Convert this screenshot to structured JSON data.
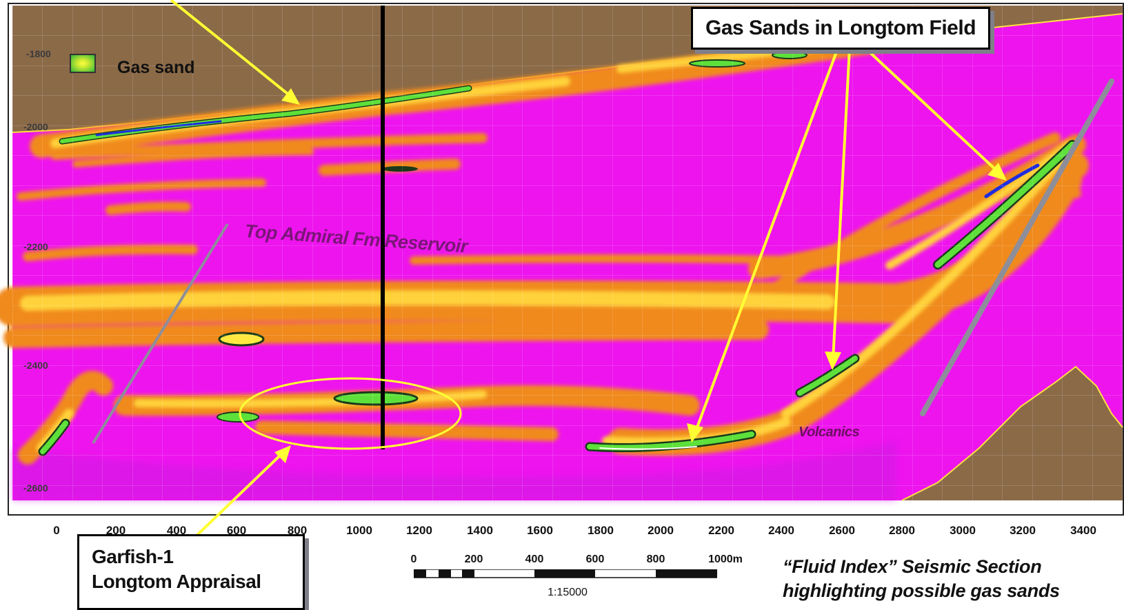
{
  "legend": {
    "swatch_icon": "gas-sand-swatch",
    "label": "Gas sand"
  },
  "callouts": {
    "top": "Gas Sands in Longtom Field",
    "bottom_line1": "Garfish-1",
    "bottom_line2": "Longtom Appraisal"
  },
  "annotations": {
    "top_admiral": "Top Admiral Fm Reservoir",
    "volcanics": "Volcanics"
  },
  "axes": {
    "y_ticks": [
      "-1800",
      "-2000",
      "-2200",
      "-2400",
      "-2600"
    ],
    "x_ticks": [
      "0",
      "200",
      "400",
      "600",
      "800",
      "1000",
      "1200",
      "1400",
      "1600",
      "1800",
      "2000",
      "2200",
      "2400",
      "2600",
      "2800",
      "3000",
      "3200",
      "3400"
    ]
  },
  "scale": {
    "labels": [
      "0",
      "200",
      "400",
      "600",
      "800",
      "1000m"
    ],
    "ratio": "1:15000"
  },
  "caption": {
    "line1": "“Fluid Index” Seismic Section",
    "line2": "highlighting possible gas sands"
  },
  "colors": {
    "background_magenta": "#ee14ee",
    "overburden_brown": "#8b6a48",
    "anomaly_orange": "#f08a1c",
    "anomaly_yellow": "#ffd23a",
    "gas_green": "#5ee03a",
    "gas_core_blue": "#1f2ddf",
    "arrow_yellow": "#ffff33",
    "well_black": "#000000",
    "fault_grey": "#8e8e9a"
  }
}
